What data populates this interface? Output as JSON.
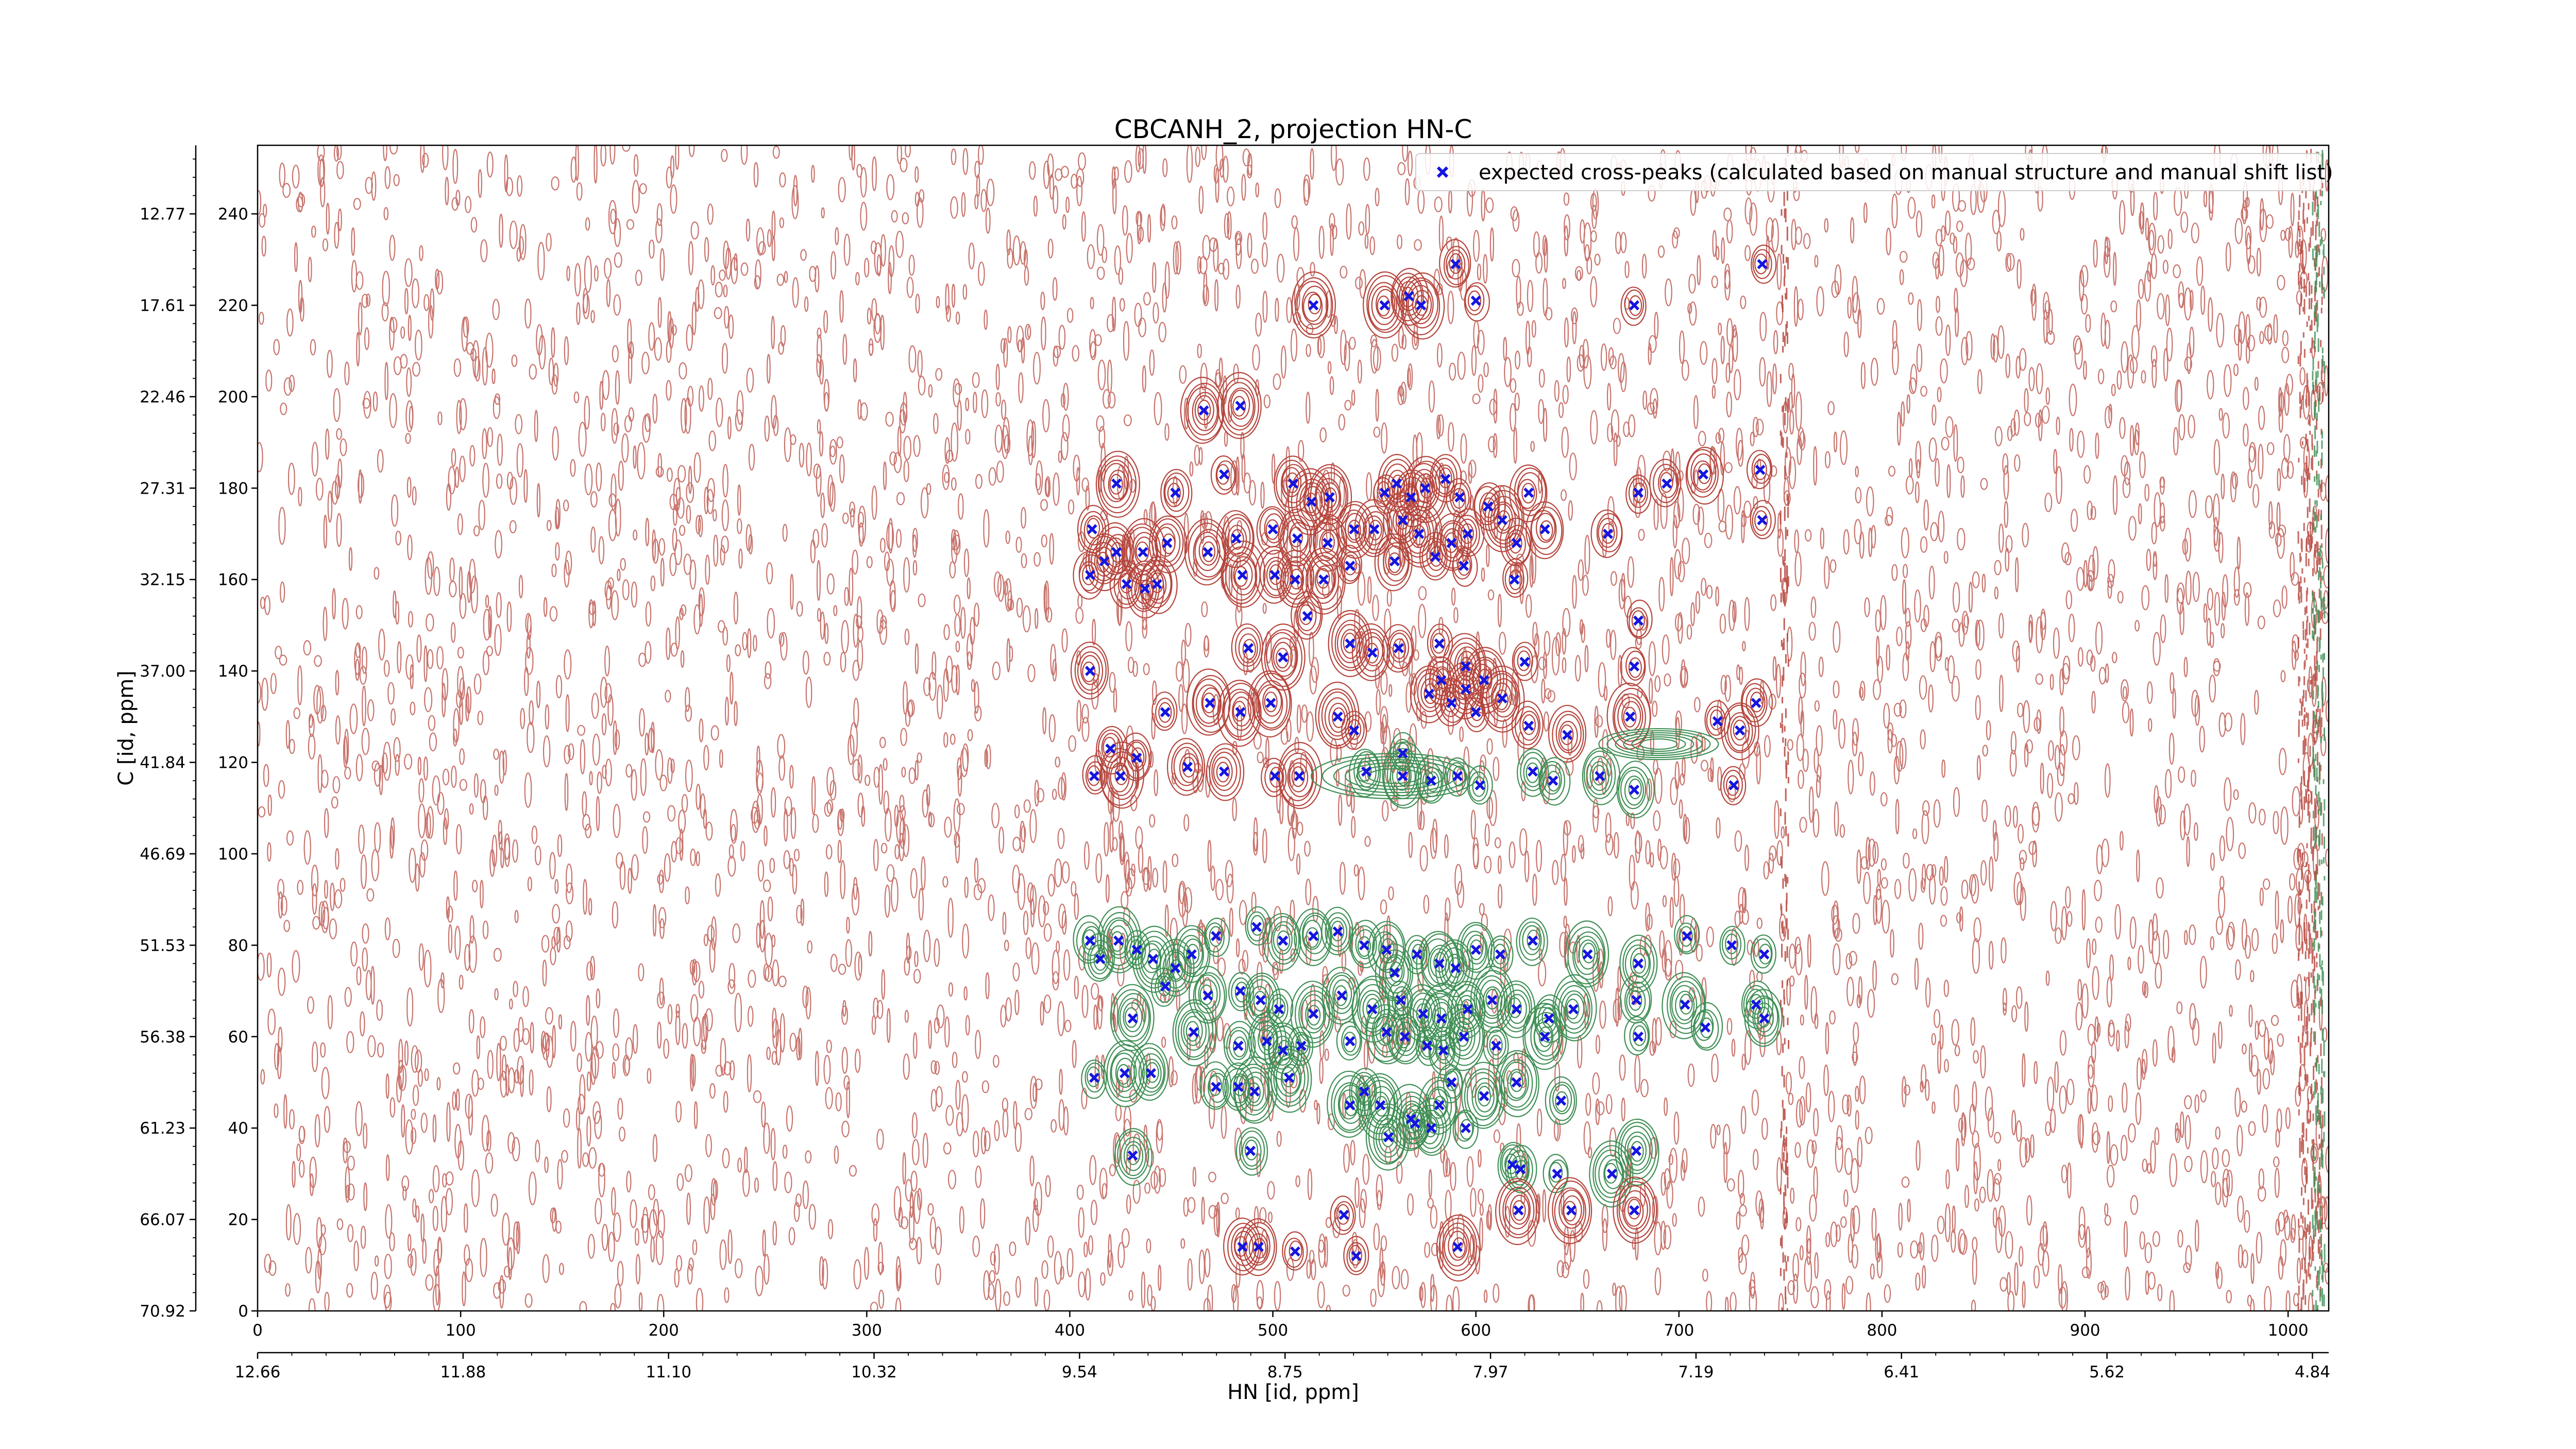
{
  "chart_data": {
    "type": "contour-scatter",
    "title": "CBCANH_2, projection HN-C",
    "xlabel": "HN [id, ppm]",
    "ylabel": "C [id, ppm]",
    "x_index_ticks": [
      "0",
      "100",
      "200",
      "300",
      "400",
      "500",
      "600",
      "700",
      "800",
      "900",
      "1000"
    ],
    "x_ppm_ticks": [
      "12.66",
      "11.88",
      "11.10",
      "10.32",
      "9.54",
      "8.75",
      "7.97",
      "7.19",
      "6.41",
      "5.62",
      "4.84"
    ],
    "y_index_ticks": [
      "0",
      "20",
      "40",
      "60",
      "80",
      "100",
      "120",
      "140",
      "160",
      "180",
      "200",
      "220",
      "240"
    ],
    "y_ppm_ticks": [
      "70.92",
      "66.07",
      "61.23",
      "56.38",
      "51.53",
      "46.69",
      "41.84",
      "37.00",
      "32.15",
      "27.31",
      "22.46",
      "17.61",
      "12.77"
    ],
    "xlim": [
      0,
      1020
    ],
    "ylim": [
      0,
      255
    ],
    "legend": {
      "label": "expected cross-peaks (calculated based on manual structure and manual shift list)",
      "placement": "top-right"
    },
    "colors": {
      "positive_contours": "#b5453c",
      "negative_contours": "#3f8f55",
      "expected_peaks": "#1515e0"
    },
    "series": [
      {
        "name": "expected cross-peaks (calculated based on manual structure and manual shift list)",
        "marker": "x",
        "points": [
          [
            590,
            229
          ],
          [
            520,
            220
          ],
          [
            555,
            220
          ],
          [
            567,
            222
          ],
          [
            573,
            220
          ],
          [
            600,
            221
          ],
          [
            678,
            220
          ],
          [
            741,
            229
          ],
          [
            466,
            197
          ],
          [
            484,
            198
          ],
          [
            423,
            181
          ],
          [
            452,
            179
          ],
          [
            476,
            183
          ],
          [
            510,
            181
          ],
          [
            519,
            177
          ],
          [
            528,
            178
          ],
          [
            555,
            179
          ],
          [
            561,
            181
          ],
          [
            568,
            178
          ],
          [
            575,
            180
          ],
          [
            585,
            182
          ],
          [
            592,
            178
          ],
          [
            606,
            176
          ],
          [
            626,
            179
          ],
          [
            680,
            179
          ],
          [
            694,
            181
          ],
          [
            712,
            183
          ],
          [
            740,
            184
          ],
          [
            411,
            171
          ],
          [
            423,
            166
          ],
          [
            417,
            164
          ],
          [
            436,
            166
          ],
          [
            448,
            168
          ],
          [
            468,
            166
          ],
          [
            482,
            169
          ],
          [
            500,
            171
          ],
          [
            512,
            169
          ],
          [
            527,
            168
          ],
          [
            540,
            171
          ],
          [
            550,
            171
          ],
          [
            564,
            173
          ],
          [
            572,
            170
          ],
          [
            588,
            168
          ],
          [
            596,
            170
          ],
          [
            613,
            173
          ],
          [
            620,
            168
          ],
          [
            634,
            171
          ],
          [
            665,
            170
          ],
          [
            741,
            173
          ],
          [
            410,
            161
          ],
          [
            428,
            159
          ],
          [
            437,
            158
          ],
          [
            443,
            159
          ],
          [
            485,
            161
          ],
          [
            501,
            161
          ],
          [
            511,
            160
          ],
          [
            525,
            160
          ],
          [
            538,
            163
          ],
          [
            560,
            164
          ],
          [
            580,
            165
          ],
          [
            594,
            163
          ],
          [
            619,
            160
          ],
          [
            517,
            152
          ],
          [
            488,
            145
          ],
          [
            505,
            143
          ],
          [
            538,
            146
          ],
          [
            549,
            144
          ],
          [
            562,
            145
          ],
          [
            582,
            146
          ],
          [
            595,
            141
          ],
          [
            604,
            138
          ],
          [
            624,
            142
          ],
          [
            678,
            141
          ],
          [
            680,
            151
          ],
          [
            410,
            140
          ],
          [
            447,
            131
          ],
          [
            469,
            133
          ],
          [
            484,
            131
          ],
          [
            499,
            133
          ],
          [
            532,
            130
          ],
          [
            540,
            127
          ],
          [
            564,
            122
          ],
          [
            577,
            135
          ],
          [
            583,
            138
          ],
          [
            588,
            133
          ],
          [
            595,
            136
          ],
          [
            600,
            131
          ],
          [
            613,
            134
          ],
          [
            626,
            128
          ],
          [
            645,
            126
          ],
          [
            676,
            130
          ],
          [
            719,
            129
          ],
          [
            738,
            133
          ],
          [
            730,
            127
          ],
          [
            420,
            123
          ],
          [
            433,
            121
          ],
          [
            412,
            117
          ],
          [
            425,
            117
          ],
          [
            458,
            119
          ],
          [
            476,
            118
          ],
          [
            501,
            117
          ],
          [
            513,
            117
          ],
          [
            546,
            118
          ],
          [
            564,
            117
          ],
          [
            578,
            116
          ],
          [
            591,
            117
          ],
          [
            602,
            115
          ],
          [
            628,
            118
          ],
          [
            638,
            116
          ],
          [
            661,
            117
          ],
          [
            678,
            114
          ],
          [
            727,
            115
          ],
          [
            410,
            81
          ],
          [
            415,
            77
          ],
          [
            424,
            81
          ],
          [
            433,
            79
          ],
          [
            441,
            77
          ],
          [
            452,
            75
          ],
          [
            460,
            78
          ],
          [
            472,
            82
          ],
          [
            492,
            84
          ],
          [
            505,
            81
          ],
          [
            520,
            82
          ],
          [
            532,
            83
          ],
          [
            545,
            80
          ],
          [
            556,
            79
          ],
          [
            560,
            74
          ],
          [
            571,
            78
          ],
          [
            582,
            76
          ],
          [
            590,
            75
          ],
          [
            600,
            79
          ],
          [
            612,
            78
          ],
          [
            628,
            81
          ],
          [
            655,
            78
          ],
          [
            680,
            76
          ],
          [
            704,
            82
          ],
          [
            726,
            80
          ],
          [
            742,
            78
          ],
          [
            447,
            71
          ],
          [
            468,
            69
          ],
          [
            484,
            70
          ],
          [
            494,
            68
          ],
          [
            503,
            66
          ],
          [
            520,
            65
          ],
          [
            534,
            69
          ],
          [
            549,
            66
          ],
          [
            563,
            68
          ],
          [
            574,
            65
          ],
          [
            583,
            64
          ],
          [
            596,
            66
          ],
          [
            608,
            68
          ],
          [
            620,
            66
          ],
          [
            636,
            64
          ],
          [
            648,
            66
          ],
          [
            679,
            68
          ],
          [
            703,
            67
          ],
          [
            713,
            62
          ],
          [
            742,
            64
          ],
          [
            738,
            67
          ],
          [
            431,
            64
          ],
          [
            461,
            61
          ],
          [
            483,
            58
          ],
          [
            497,
            59
          ],
          [
            505,
            57
          ],
          [
            514,
            58
          ],
          [
            538,
            59
          ],
          [
            556,
            61
          ],
          [
            565,
            60
          ],
          [
            576,
            58
          ],
          [
            584,
            57
          ],
          [
            594,
            60
          ],
          [
            610,
            58
          ],
          [
            634,
            60
          ],
          [
            680,
            60
          ],
          [
            412,
            51
          ],
          [
            427,
            52
          ],
          [
            440,
            52
          ],
          [
            472,
            49
          ],
          [
            483,
            49
          ],
          [
            491,
            48
          ],
          [
            508,
            51
          ],
          [
            538,
            45
          ],
          [
            545,
            48
          ],
          [
            553,
            45
          ],
          [
            568,
            42
          ],
          [
            582,
            45
          ],
          [
            588,
            50
          ],
          [
            604,
            47
          ],
          [
            620,
            50
          ],
          [
            642,
            46
          ],
          [
            431,
            34
          ],
          [
            489,
            35
          ],
          [
            557,
            38
          ],
          [
            570,
            41
          ],
          [
            578,
            40
          ],
          [
            595,
            40
          ],
          [
            618,
            32
          ],
          [
            622,
            31
          ],
          [
            640,
            30
          ],
          [
            667,
            30
          ],
          [
            679,
            35
          ],
          [
            485,
            14
          ],
          [
            493,
            14
          ],
          [
            511,
            13
          ],
          [
            535,
            21
          ],
          [
            541,
            12
          ],
          [
            591,
            14
          ],
          [
            621,
            22
          ],
          [
            647,
            22
          ],
          [
            678,
            22
          ]
        ]
      }
    ]
  }
}
